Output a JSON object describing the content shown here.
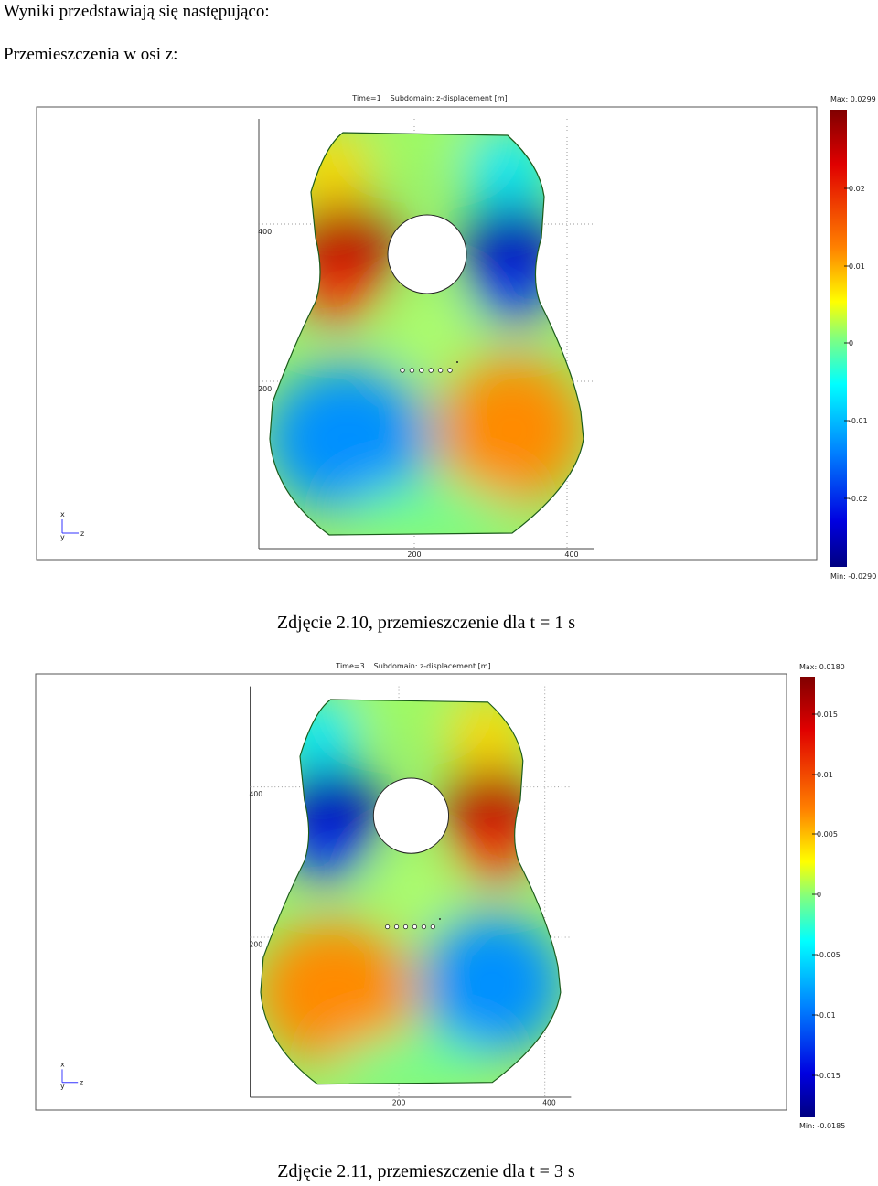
{
  "intro": [
    "Wyniki przedstawiają się następująco:",
    "Przemieszczenia w osi z:"
  ],
  "figures": [
    {
      "time": "Time=1",
      "subdomain": "Subdomain: z-displacement [m]",
      "colorbar": {
        "max": "Max: 0.0299",
        "ticks": [
          "0.02",
          "0.01",
          "0",
          "-0.01",
          "-0.02"
        ],
        "min": "Min: -0.0290"
      },
      "y_ticks": [
        "400",
        "200"
      ],
      "x_ticks": [
        "200",
        "400"
      ],
      "triad": [
        "x",
        "y",
        "z"
      ],
      "caption": "Zdjęcie 2.10, przemieszczenie dla t = 1 s"
    },
    {
      "time": "Time=3",
      "subdomain": "Subdomain: z-displacement [m]",
      "colorbar": {
        "max": "Max: 0.0180",
        "ticks": [
          "0.015",
          "0.01",
          "0.005",
          "0",
          "-0.005",
          "-0.01",
          "-0.015"
        ],
        "min": "Min: -0.0185"
      },
      "y_ticks": [
        "400",
        "200"
      ],
      "x_ticks": [
        "200",
        "400"
      ],
      "triad": [
        "x",
        "y",
        "z"
      ],
      "caption": "Zdjęcie 2.11, przemieszczenie dla t = 3 s"
    }
  ]
}
